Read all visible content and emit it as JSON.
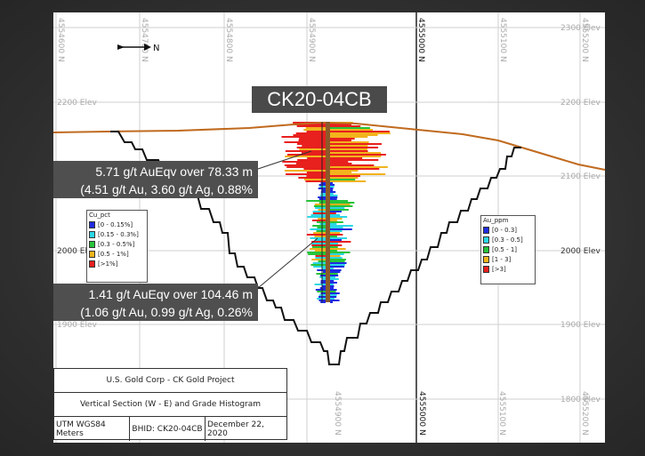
{
  "hole_id": "CK20-04CB",
  "north_arrow_label": "N",
  "elevation_labels": [
    "2300 Elev",
    "2200 Elev",
    "2100 Elev",
    "2000 Elev",
    "1900 Elev",
    "1800 Elev"
  ],
  "elevation_labels_left": [
    "2200 Elev",
    "2100 Elev",
    "2000 Elev",
    "1900 Elev"
  ],
  "northing_labels_top": [
    "4554600 N",
    "4554700 N",
    "4554800 N",
    "4554900 N",
    "4555000 N",
    "4555100 N",
    "4555200 N"
  ],
  "northing_labels_bottom": [
    "4554900 N",
    "4555000 N",
    "4555100 N",
    "4555200 N"
  ],
  "callout_upper": {
    "line1": "5.71 g/t AuEqv over 78.33 m",
    "line2": "(4.51 g/t Au, 3.60 g/t Ag, 0.88% Cu)"
  },
  "callout_lower": {
    "line1": "1.41 g/t AuEqv over 104.46 m",
    "line2": "(1.06 g/t Au, 0.99 g/t Ag, 0.26% Cu)"
  },
  "legend_cu": {
    "title": "Cu_pct",
    "items": [
      {
        "label": "[0 - 0.15%]",
        "color": "#1f2be0"
      },
      {
        "label": "[0.15 - 0.3%]",
        "color": "#2bd6e6"
      },
      {
        "label": "[0.3 - 0.5%]",
        "color": "#27c33a"
      },
      {
        "label": "[0.5 - 1%]",
        "color": "#f2b31c"
      },
      {
        "label": "[>1%]",
        "color": "#e8201e"
      }
    ]
  },
  "legend_au": {
    "title": "Au_ppm",
    "items": [
      {
        "label": "[0 - 0.3]",
        "color": "#1f2be0"
      },
      {
        "label": "[0.3 - 0.5]",
        "color": "#2bd6e6"
      },
      {
        "label": "[0.5 - 1]",
        "color": "#27c33a"
      },
      {
        "label": "[1 - 3]",
        "color": "#f2b31c"
      },
      {
        "label": "[>3]",
        "color": "#e8201e"
      }
    ]
  },
  "title_block": {
    "line1": "U.S. Gold Corp - CK Gold Project",
    "line2": "Vertical Section (W - E) and Grade Histogram",
    "coords": "UTM WGS84 Meters",
    "bhid": "BHID: CK20-04CB",
    "date": "December 22, 2020"
  },
  "colors": {
    "topography": "#c06a1e",
    "pit_outline": "#111111",
    "drill_trace": "#8b5a2b",
    "grid": "#cfcfcf"
  }
}
